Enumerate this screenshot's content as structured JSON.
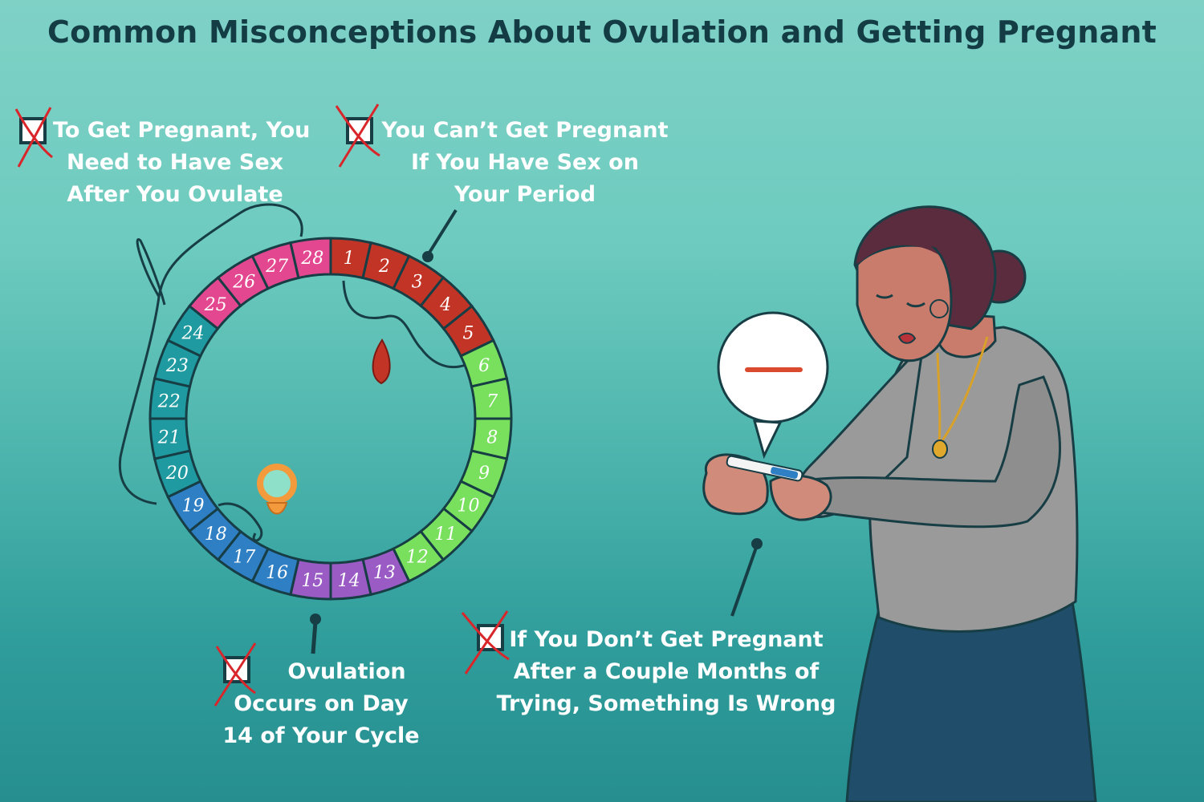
{
  "title": "Common Misconceptions About Ovulation and Getting Pregnant",
  "myths": [
    {
      "lines": [
        "To Get Pregnant, You",
        "Need to Have Sex",
        "After You Ovulate"
      ]
    },
    {
      "lines": [
        "You Can’t Get Pregnant",
        "If You Have Sex on",
        "Your Period"
      ]
    },
    {
      "lines": [
        "Ovulation",
        "Occurs on Day",
        "14 of Your Cycle"
      ]
    },
    {
      "lines": [
        "If You Don’t Get Pregnant",
        "After a Couple Months of",
        "Trying, Something Is Wrong"
      ]
    }
  ],
  "cycle": {
    "days": [
      "1",
      "2",
      "3",
      "4",
      "5",
      "6",
      "7",
      "8",
      "9",
      "10",
      "11",
      "12",
      "13",
      "14",
      "15",
      "16",
      "17",
      "18",
      "19",
      "20",
      "21",
      "22",
      "23",
      "24",
      "25",
      "26",
      "27",
      "28"
    ],
    "phase_colors": {
      "period": "#c23526",
      "follicular": "#79e05e",
      "ovulation": "#9a5bc4",
      "luteal_blue": "#2f7fc4",
      "luteal_teal": "#1f9aa0",
      "premenstrual": "#e3478f"
    }
  },
  "colors": {
    "background": "#6ecbbf",
    "title_text": "#133c44",
    "myth_text": "#ffffff",
    "cross": "#d8262b",
    "test_result_line": "#d94a2f"
  }
}
